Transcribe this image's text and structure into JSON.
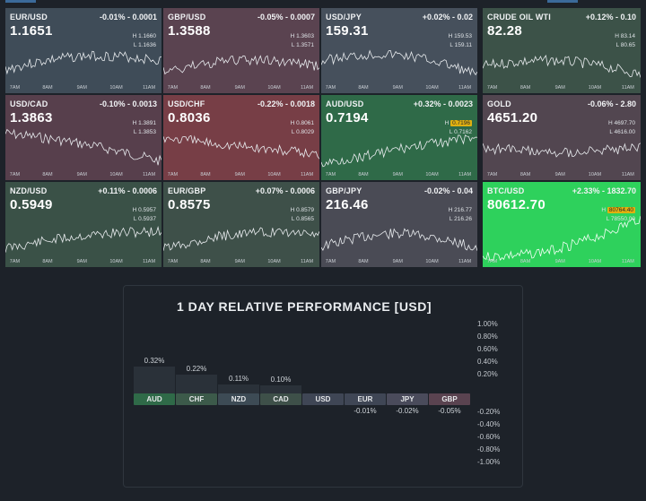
{
  "tiles": [
    {
      "symbol": "EUR/USD",
      "change": "-0.01% - 0.0001",
      "price": "1.1651",
      "high": "1.1660",
      "low": "1.1636",
      "bg": "#3f4c58",
      "highlight": false
    },
    {
      "symbol": "GBP/USD",
      "change": "-0.05% - 0.0007",
      "price": "1.3588",
      "high": "1.3603",
      "low": "1.3571",
      "bg": "#5a4350",
      "highlight": false
    },
    {
      "symbol": "USD/JPY",
      "change": "+0.02% - 0.02",
      "price": "159.31",
      "high": "159.53",
      "low": "159.11",
      "bg": "#46505c",
      "highlight": false
    },
    {
      "symbol": "CRUDE OIL WTI",
      "change": "+0.12% - 0.10",
      "price": "82.28",
      "high": "83.14",
      "low": "80.65",
      "bg": "#3c5248",
      "highlight": false
    },
    {
      "symbol": "USD/CAD",
      "change": "-0.10% - 0.0013",
      "price": "1.3863",
      "high": "1.3891",
      "low": "1.3853",
      "bg": "#573f4c",
      "highlight": false
    },
    {
      "symbol": "USD/CHF",
      "change": "-0.22% - 0.0018",
      "price": "0.8036",
      "high": "0.8061",
      "low": "0.8029",
      "bg": "#773e46",
      "highlight": false
    },
    {
      "symbol": "AUD/USD",
      "change": "+0.32% - 0.0023",
      "price": "0.7194",
      "high": "0.7196",
      "low": "0.7162",
      "bg": "#2f6a48",
      "highlight": true
    },
    {
      "symbol": "GOLD",
      "change": "-0.06% - 2.80",
      "price": "4651.20",
      "high": "4697.70",
      "low": "4616.00",
      "bg": "#524650",
      "highlight": false
    },
    {
      "symbol": "NZD/USD",
      "change": "+0.11% - 0.0006",
      "price": "0.5949",
      "high": "0.5957",
      "low": "0.5937",
      "bg": "#3a5147",
      "highlight": false
    },
    {
      "symbol": "EUR/GBP",
      "change": "+0.07% - 0.0006",
      "price": "0.8575",
      "high": "0.8579",
      "low": "0.8565",
      "bg": "#3e5049",
      "highlight": false
    },
    {
      "symbol": "GBP/JPY",
      "change": "-0.02% - 0.04",
      "price": "216.46",
      "high": "216.77",
      "low": "216.26",
      "bg": "#4a4b55",
      "highlight": false
    },
    {
      "symbol": "BTC/USD",
      "change": "+2.33% - 1832.70",
      "price": "80612.70",
      "high": "80764.40",
      "low": "78550.00",
      "bg": "#2ed15c",
      "highlight": true
    }
  ],
  "time_ticks": [
    "7AM",
    "8AM",
    "9AM",
    "10AM",
    "11AM"
  ],
  "high_prefix": "H",
  "low_prefix": "L",
  "performance": {
    "title": "1 DAY RELATIVE PERFORMANCE  [USD]",
    "axis_labels": [
      "1.00%",
      "0.80%",
      "0.60%",
      "0.40%",
      "0.20%",
      "-0.20%",
      "-0.40%",
      "-0.60%",
      "-0.80%",
      "-1.00%"
    ],
    "chart_data": {
      "type": "bar",
      "title": "1 DAY RELATIVE PERFORMANCE  [USD]",
      "categories": [
        "AUD",
        "CHF",
        "NZD",
        "CAD",
        "USD",
        "EUR",
        "JPY",
        "GBP"
      ],
      "values": [
        0.32,
        0.22,
        0.11,
        0.1,
        0,
        -0.01,
        -0.02,
        -0.05
      ],
      "value_labels": [
        "0.32%",
        "0.22%",
        "0.11%",
        "0.10%",
        "",
        "-0.01%",
        "-0.02%",
        "-0.05%"
      ],
      "ylim": [
        -1.0,
        1.0
      ],
      "grid": false,
      "colors": {
        "AUD": "#2f6a48",
        "CHF": "#3c5a4a",
        "NZD": "#3d4b55",
        "CAD": "#3e5049",
        "USD": "#3f4655",
        "EUR": "#3f4655",
        "JPY": "#4a4b5b",
        "GBP": "#5a4350"
      }
    }
  }
}
